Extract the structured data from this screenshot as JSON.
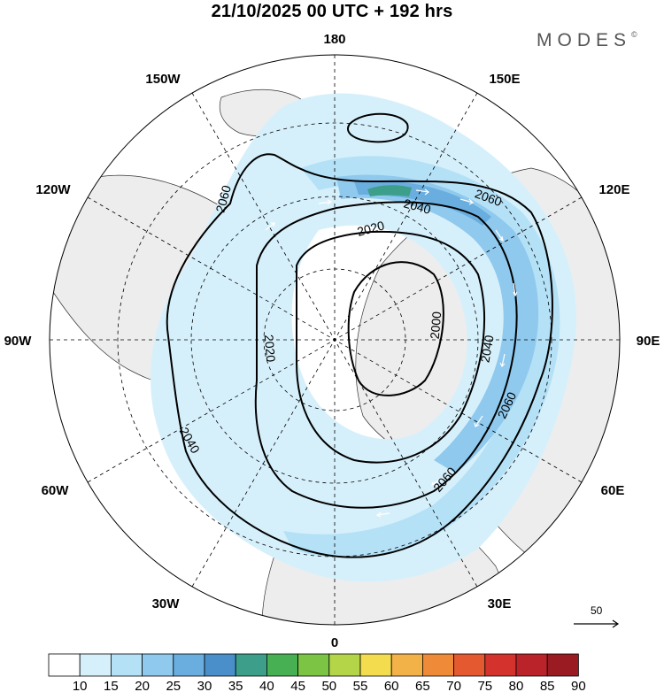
{
  "title": "21/10/2025  00 UTC  + 192 hrs",
  "brand": "MODES",
  "brand_mark": "©",
  "longitude_labels": [
    "180",
    "150E",
    "120E",
    "90E",
    "60E",
    "30E",
    "0",
    "30W",
    "60W",
    "90W",
    "120W",
    "150W"
  ],
  "contour_labels": [
    "2060",
    "2060",
    "2060",
    "2060",
    "2040",
    "2040",
    "2040",
    "2020",
    "2020",
    "2000"
  ],
  "wind_scale_label": "50",
  "colorbar": {
    "ticks": [
      "10",
      "15",
      "20",
      "25",
      "30",
      "35",
      "40",
      "45",
      "50",
      "55",
      "60",
      "65",
      "70",
      "75",
      "80",
      "85",
      "90"
    ],
    "colors": [
      "#ffffff",
      "#d6f0fb",
      "#b5e1f7",
      "#8fc9ee",
      "#6aaedf",
      "#4a8fc9",
      "#3d9e8a",
      "#47b052",
      "#7cc444",
      "#b5d549",
      "#f4dc4f",
      "#f3b248",
      "#ef8a39",
      "#e4592f",
      "#d3332c",
      "#bb232b",
      "#9a1b22"
    ]
  }
}
